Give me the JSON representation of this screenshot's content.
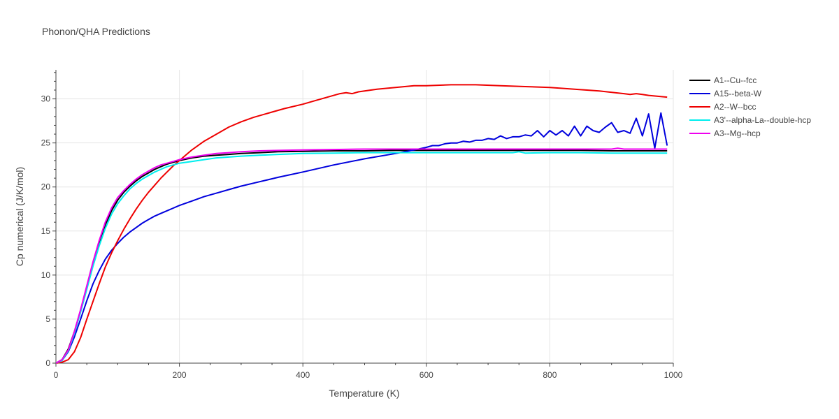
{
  "chart_data": {
    "type": "line",
    "title": "Phonon/QHA Predictions",
    "xlabel": "Temperature (K)",
    "ylabel": "Cp numerical (J/K/mol)",
    "xlim": [
      0,
      1000
    ],
    "ylim": [
      0,
      33.3
    ],
    "xticks": [
      0,
      200,
      400,
      600,
      800,
      1000
    ],
    "yticks": [
      0,
      5,
      10,
      15,
      20,
      25,
      30
    ],
    "grid": true,
    "legend_position": "top-right",
    "series": [
      {
        "name": "A1--Cu--fcc",
        "color": "#000000",
        "x": [
          0,
          10,
          20,
          30,
          40,
          50,
          60,
          70,
          80,
          90,
          100,
          110,
          120,
          130,
          140,
          150,
          160,
          170,
          180,
          190,
          200,
          220,
          240,
          260,
          280,
          300,
          330,
          360,
          400,
          450,
          500,
          550,
          600,
          650,
          700,
          750,
          800,
          850,
          900,
          950,
          990
        ],
        "y": [
          0,
          0.4,
          1.6,
          3.6,
          6.0,
          8.6,
          11.2,
          13.6,
          15.7,
          17.3,
          18.5,
          19.4,
          20.1,
          20.7,
          21.2,
          21.6,
          22.0,
          22.3,
          22.6,
          22.8,
          23.0,
          23.3,
          23.5,
          23.6,
          23.7,
          23.8,
          23.9,
          24.0,
          24.05,
          24.1,
          24.1,
          24.15,
          24.15,
          24.15,
          24.15,
          24.15,
          24.15,
          24.15,
          24.1,
          24.1,
          24.1
        ]
      },
      {
        "name": "A15--beta-W",
        "color": "#0000dd",
        "x": [
          0,
          10,
          20,
          30,
          40,
          50,
          60,
          70,
          80,
          90,
          100,
          110,
          120,
          130,
          140,
          150,
          160,
          170,
          180,
          190,
          200,
          220,
          240,
          260,
          280,
          300,
          330,
          360,
          400,
          450,
          500,
          550,
          580,
          600,
          610,
          620,
          630,
          640,
          650,
          660,
          670,
          680,
          690,
          700,
          710,
          720,
          730,
          740,
          750,
          760,
          770,
          780,
          790,
          800,
          810,
          820,
          830,
          840,
          850,
          860,
          870,
          880,
          890,
          900,
          910,
          920,
          930,
          940,
          950,
          960,
          970,
          980,
          990
        ],
        "y": [
          0,
          0.3,
          1.3,
          3.0,
          5.0,
          7.1,
          9.0,
          10.5,
          11.8,
          12.8,
          13.6,
          14.3,
          14.9,
          15.4,
          15.9,
          16.3,
          16.7,
          17.0,
          17.3,
          17.6,
          17.9,
          18.4,
          18.9,
          19.3,
          19.7,
          20.1,
          20.6,
          21.1,
          21.7,
          22.5,
          23.2,
          23.8,
          24.2,
          24.5,
          24.7,
          24.7,
          24.9,
          25.0,
          25.0,
          25.2,
          25.1,
          25.3,
          25.3,
          25.5,
          25.4,
          25.8,
          25.5,
          25.7,
          25.7,
          25.9,
          25.8,
          26.4,
          25.7,
          26.4,
          25.9,
          26.4,
          25.8,
          26.9,
          25.8,
          26.9,
          26.4,
          26.2,
          26.8,
          27.3,
          26.2,
          26.4,
          26.1,
          27.8,
          25.8,
          28.3,
          24.4,
          28.4,
          24.7
        ]
      },
      {
        "name": "A2--W--bcc",
        "color": "#ee0000",
        "x": [
          0,
          10,
          20,
          30,
          40,
          50,
          60,
          70,
          80,
          90,
          100,
          110,
          120,
          130,
          140,
          150,
          160,
          170,
          180,
          190,
          200,
          220,
          240,
          260,
          280,
          300,
          320,
          350,
          370,
          400,
          420,
          440,
          460,
          470,
          480,
          490,
          520,
          550,
          580,
          600,
          640,
          680,
          720,
          760,
          800,
          840,
          880,
          920,
          930,
          940,
          950,
          960,
          990
        ],
        "y": [
          0,
          0.1,
          0.4,
          1.3,
          2.9,
          5.0,
          7.0,
          9.0,
          10.9,
          12.5,
          13.9,
          15.2,
          16.4,
          17.5,
          18.5,
          19.4,
          20.2,
          21.0,
          21.7,
          22.4,
          23.0,
          24.2,
          25.2,
          26.0,
          26.8,
          27.4,
          27.9,
          28.5,
          28.9,
          29.4,
          29.8,
          30.2,
          30.6,
          30.7,
          30.6,
          30.8,
          31.1,
          31.3,
          31.5,
          31.5,
          31.6,
          31.6,
          31.5,
          31.4,
          31.3,
          31.1,
          30.9,
          30.6,
          30.5,
          30.6,
          30.5,
          30.4,
          30.2
        ]
      },
      {
        "name": "A3'--alpha-La--double-hcp",
        "color": "#00eeee",
        "x": [
          0,
          10,
          20,
          30,
          40,
          50,
          60,
          70,
          80,
          90,
          100,
          110,
          120,
          130,
          140,
          150,
          160,
          170,
          180,
          190,
          200,
          220,
          240,
          260,
          280,
          300,
          330,
          360,
          400,
          450,
          500,
          550,
          600,
          650,
          700,
          740,
          750,
          760,
          800,
          850,
          900,
          950,
          990
        ],
        "y": [
          0,
          0.3,
          1.4,
          3.4,
          5.8,
          8.4,
          11.0,
          13.3,
          15.3,
          16.9,
          18.1,
          19.0,
          19.8,
          20.4,
          20.9,
          21.3,
          21.7,
          22.0,
          22.3,
          22.5,
          22.7,
          22.9,
          23.1,
          23.3,
          23.4,
          23.5,
          23.6,
          23.7,
          23.8,
          23.85,
          23.9,
          23.9,
          23.9,
          23.9,
          23.9,
          23.9,
          24.0,
          23.85,
          23.9,
          23.9,
          23.85,
          23.85,
          23.85
        ]
      },
      {
        "name": "A3--Mg--hcp",
        "color": "#ee00ee",
        "x": [
          0,
          10,
          20,
          30,
          40,
          50,
          60,
          70,
          80,
          90,
          100,
          110,
          120,
          130,
          140,
          150,
          160,
          170,
          180,
          190,
          200,
          220,
          240,
          260,
          280,
          300,
          330,
          360,
          400,
          450,
          500,
          550,
          600,
          650,
          700,
          750,
          800,
          850,
          900,
          910,
          920,
          950,
          990
        ],
        "y": [
          0,
          0.4,
          1.5,
          3.6,
          6.1,
          8.8,
          11.5,
          13.9,
          16.0,
          17.6,
          18.8,
          19.6,
          20.3,
          20.9,
          21.4,
          21.8,
          22.2,
          22.5,
          22.7,
          22.9,
          23.1,
          23.4,
          23.6,
          23.8,
          23.9,
          24.0,
          24.1,
          24.15,
          24.2,
          24.25,
          24.3,
          24.3,
          24.3,
          24.3,
          24.3,
          24.3,
          24.3,
          24.3,
          24.3,
          24.4,
          24.3,
          24.3,
          24.3
        ]
      }
    ]
  }
}
